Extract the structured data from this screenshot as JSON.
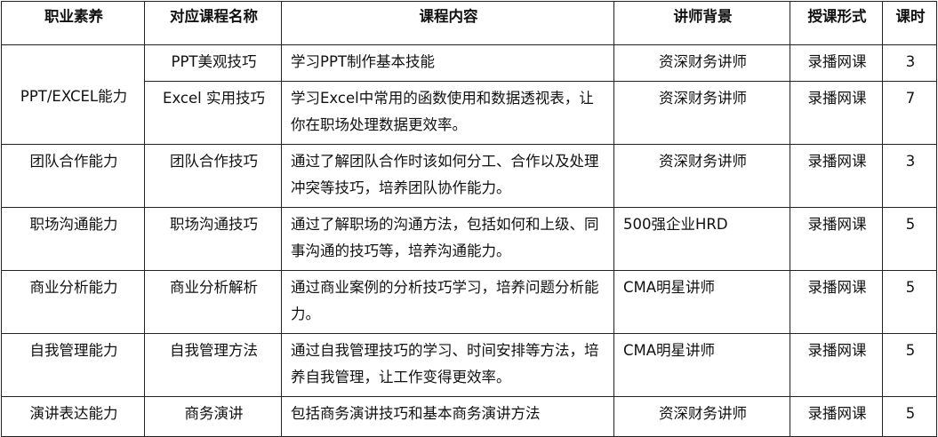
{
  "headers": [
    "职业素养",
    "对应课程名称",
    "课程内容",
    "讲师背景",
    "授课形式",
    "课时"
  ],
  "rows": [
    {
      "competency": "PPT/EXCEL能力",
      "course": "PPT美观技巧",
      "content": "学习PPT制作基本技能",
      "instructor": "资深财务讲师",
      "format": "录播网课",
      "hours": "3"
    },
    {
      "competency": "",
      "course": "Excel 实用技巧",
      "content": "学习Excel中常用的函数使用和数据透视表，让你在职场处理数据更效率。",
      "instructor": "资深财务讲师",
      "format": "录播网课",
      "hours": "7"
    },
    {
      "competency": "团队合作能力",
      "course": "团队合作技巧",
      "content": "通过了解团队合作时该如何分工、合作以及处理冲突等技巧，培养团队协作能力。",
      "instructor": "资深财务讲师",
      "format": "录播网课",
      "hours": "3"
    },
    {
      "competency": "职场沟通能力",
      "course": "职场沟通技巧",
      "content": "通过了解职场的沟通方法，包括如何和上级、同事沟通的技巧等，培养沟通能力。",
      "instructor": "500强企业HRD",
      "format": "录播网课",
      "hours": "5"
    },
    {
      "competency": "商业分析能力",
      "course": "商业分析解析",
      "content": "通过商业案例的分析技巧学习，培养问题分析能力。",
      "instructor": "CMA明星讲师",
      "format": "录播网课",
      "hours": "5"
    },
    {
      "competency": "自我管理能力",
      "course": "自我管理方法",
      "content": "通过自我管理技巧的学习、时间安排等方法，培养自我管理，让工作变得更效率。",
      "instructor": "CMA明星讲师",
      "format": "录播网课",
      "hours": "5"
    },
    {
      "competency": "演讲表达能力",
      "course": "商务演讲",
      "content": "包括商务演讲技巧和基本商务演讲方法",
      "instructor": "资深财务讲师",
      "format": "录播网课",
      "hours": "5"
    }
  ]
}
